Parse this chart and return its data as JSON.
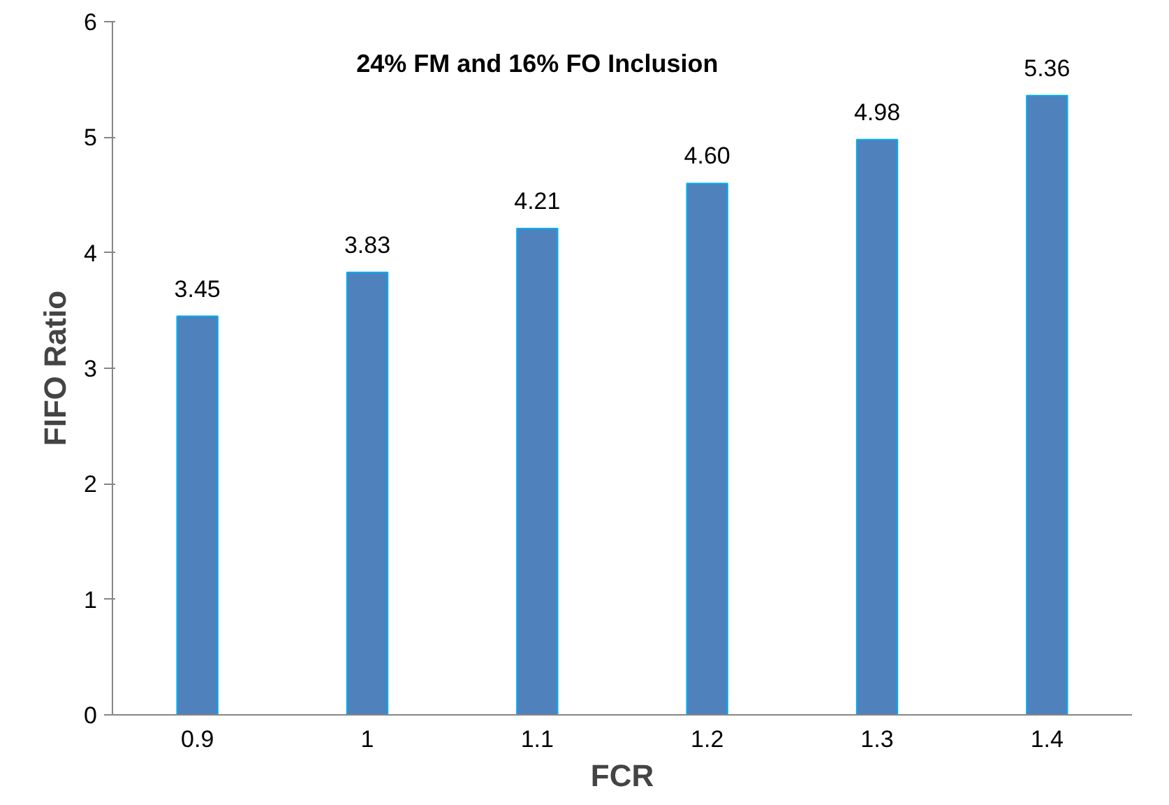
{
  "chart_data": {
    "type": "bar",
    "title": "24% FM and 16% FO Inclusion",
    "xlabel": "FCR",
    "ylabel": "FIFO Ratio",
    "categories": [
      "0.9",
      "1",
      "1.1",
      "1.2",
      "1.3",
      "1.4"
    ],
    "values": [
      3.45,
      3.83,
      4.21,
      4.6,
      4.98,
      5.36
    ],
    "value_labels": [
      "3.45",
      "3.83",
      "4.21",
      "4.60",
      "4.98",
      "5.36"
    ],
    "color": "#4f81bd",
    "ylim": [
      0,
      6
    ],
    "yticks": [
      0,
      1,
      2,
      3,
      4,
      5,
      6
    ],
    "grid": false
  }
}
